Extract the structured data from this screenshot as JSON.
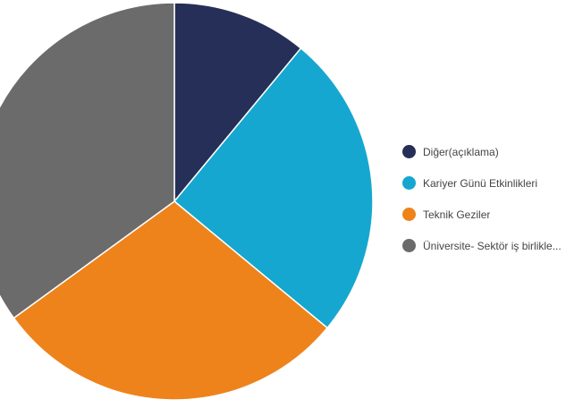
{
  "chart_data": {
    "type": "pie",
    "categories": [
      "Diğer(açıklama)",
      "Kariyer Günü Etkinlikleri",
      "Teknik Geziler",
      "Üniversite- Sektör iş birlikle..."
    ],
    "values": [
      11,
      25,
      29,
      35
    ],
    "colors": [
      "#252f57",
      "#15a7cf",
      "#ee831b",
      "#6b6b6b"
    ],
    "start_angle_deg": 0,
    "direction": "clockwise",
    "legend_position": "right",
    "legend_marker": "circle"
  }
}
